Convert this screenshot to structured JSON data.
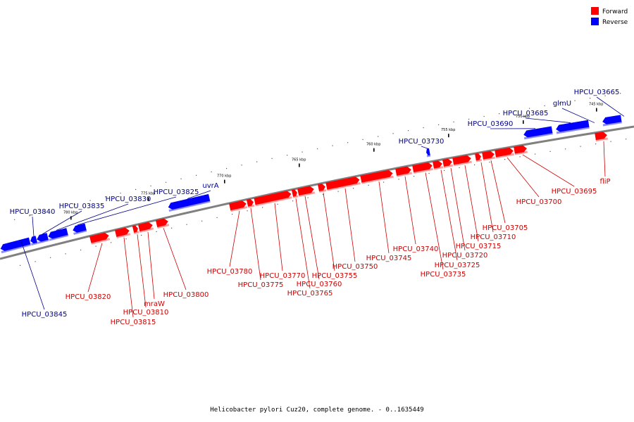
{
  "legend": {
    "forward": {
      "label": "Forward",
      "color": "#ff0000"
    },
    "reverse": {
      "label": "Reverse",
      "color": "#0000ff"
    }
  },
  "caption": "Helicobacter pylori Cuz20, complete genome. - 0..1635449",
  "colors": {
    "forward": "#ff0000",
    "forward_shadow": "#ff9b9b",
    "forward_text": "#cc0000",
    "reverse": "#0000ff",
    "reverse_shadow": "#8c8cff",
    "reverse_text": "#00008b",
    "backbone": "#808080"
  },
  "ticks": [
    "780 kbp",
    "775 kbp",
    "770 kbp",
    "765 kbp",
    "760 kbp",
    "755 kbp",
    "750 kbp",
    "745 kbp"
  ],
  "genes": [
    {
      "id": "HPCU_03665",
      "strand": "reverse"
    },
    {
      "id": "glmU",
      "strand": "reverse"
    },
    {
      "id": "HPCU_03685",
      "strand": "reverse"
    },
    {
      "id": "HPCU_03690",
      "strand": "reverse"
    },
    {
      "id": "HPCU_03730",
      "strand": "reverse"
    },
    {
      "id": "uvrA",
      "strand": "reverse"
    },
    {
      "id": "HPCU_03825",
      "strand": "reverse"
    },
    {
      "id": "HPCU_03830",
      "strand": "reverse"
    },
    {
      "id": "HPCU_03835",
      "strand": "reverse"
    },
    {
      "id": "HPCU_03840",
      "strand": "reverse"
    },
    {
      "id": "HPCU_03845",
      "strand": "reverse"
    },
    {
      "id": "fliP",
      "strand": "forward"
    },
    {
      "id": "HPCU_03695",
      "strand": "forward"
    },
    {
      "id": "HPCU_03700",
      "strand": "forward"
    },
    {
      "id": "HPCU_03705",
      "strand": "forward"
    },
    {
      "id": "HPCU_03710",
      "strand": "forward"
    },
    {
      "id": "HPCU_03715",
      "strand": "forward"
    },
    {
      "id": "HPCU_03720",
      "strand": "forward"
    },
    {
      "id": "HPCU_03725",
      "strand": "forward"
    },
    {
      "id": "HPCU_03735",
      "strand": "forward"
    },
    {
      "id": "HPCU_03740",
      "strand": "forward"
    },
    {
      "id": "HPCU_03745",
      "strand": "forward"
    },
    {
      "id": "HPCU_03750",
      "strand": "forward"
    },
    {
      "id": "HPCU_03755",
      "strand": "forward"
    },
    {
      "id": "HPCU_03760",
      "strand": "forward"
    },
    {
      "id": "HPCU_03765",
      "strand": "forward"
    },
    {
      "id": "HPCU_03770",
      "strand": "forward"
    },
    {
      "id": "HPCU_03775",
      "strand": "forward"
    },
    {
      "id": "HPCU_03780",
      "strand": "forward"
    },
    {
      "id": "HPCU_03800",
      "strand": "forward"
    },
    {
      "id": "mraW",
      "strand": "forward"
    },
    {
      "id": "HPCU_03810",
      "strand": "forward"
    },
    {
      "id": "HPCU_03815",
      "strand": "forward"
    },
    {
      "id": "HPCU_03820",
      "strand": "forward"
    }
  ]
}
